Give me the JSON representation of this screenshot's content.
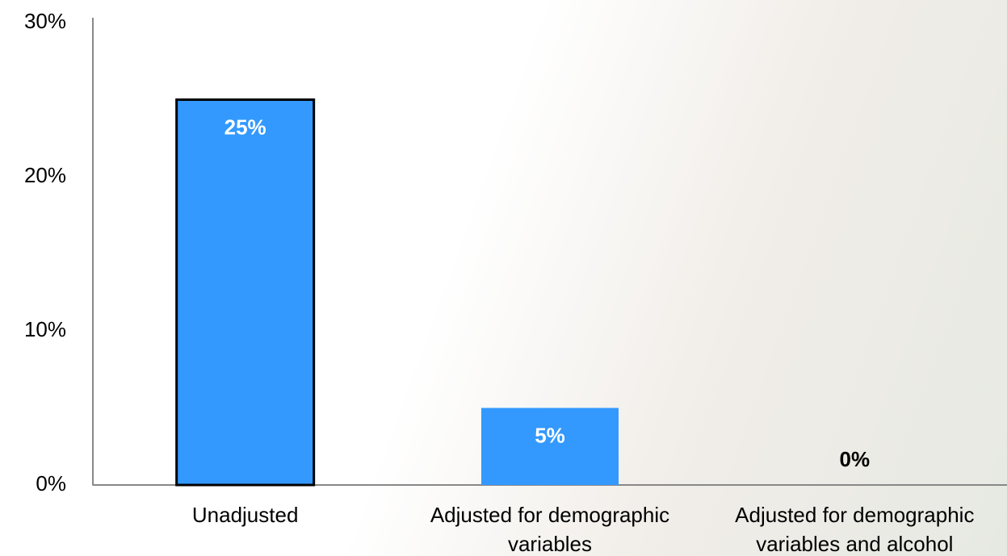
{
  "chart_data": {
    "type": "bar",
    "categories": [
      "Unadjusted",
      "Adjusted for demographic variables",
      "Adjusted for demographic variables and alcohol"
    ],
    "values": [
      25,
      5,
      0
    ],
    "value_labels": [
      "25%",
      "5%",
      "0%"
    ],
    "color": "#3399ff",
    "edgecolors": [
      "#000000",
      null,
      null
    ],
    "ylim": [
      0,
      30
    ],
    "yticks": [
      {
        "value": 0,
        "label": "0%"
      },
      {
        "value": 10,
        "label": "10%"
      },
      {
        "value": 20,
        "label": "20%"
      },
      {
        "value": 30,
        "label": "30%"
      }
    ],
    "grid": false
  }
}
